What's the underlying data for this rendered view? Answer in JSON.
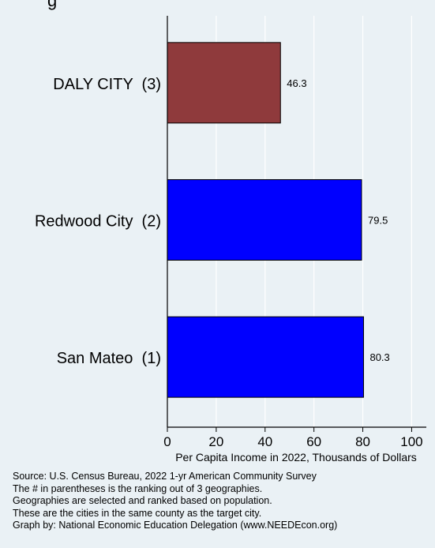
{
  "chart_data": {
    "type": "bar",
    "orientation": "horizontal",
    "title_fragment": "g",
    "categories": [
      "DALY CITY  (3)",
      "Redwood City  (2)",
      "San Mateo  (1)"
    ],
    "values": [
      46.3,
      79.5,
      80.3
    ],
    "value_labels": [
      "46.3",
      "79.5",
      "80.3"
    ],
    "colors": [
      "#8f3a3c",
      "#0000ff",
      "#0000ff"
    ],
    "xlabel": "Per Capita Income in 2022, Thousands of Dollars",
    "xlim": [
      0,
      106
    ],
    "xticks": [
      0,
      20,
      40,
      60,
      80,
      100
    ],
    "grid": true
  },
  "notes": [
    "Source: U.S. Census Bureau, 2022 1-yr American Community Survey",
    "The # in parentheses is the ranking out of 3 geographies.",
    "Geographies are selected and ranked based on population.",
    "These are the cities in the same county as the target city.",
    "Graph by: National Economic Education Delegation (www.NEEDEcon.org)"
  ],
  "colors": {
    "background": "#eaf1f5",
    "grid": "#ffffff",
    "highlight_bar": "#8f3a3c",
    "bar": "#0000ff"
  }
}
